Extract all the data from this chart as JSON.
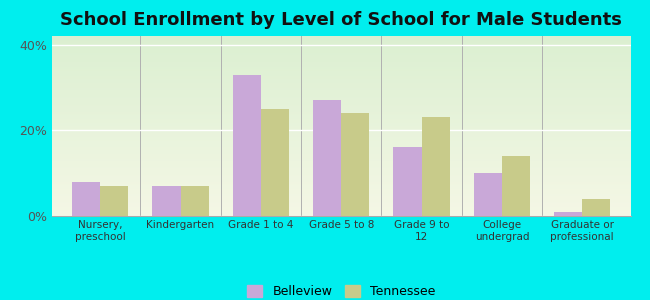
{
  "title": "School Enrollment by Level of School for Male Students",
  "categories": [
    "Nursery,\npreschool",
    "Kindergarten",
    "Grade 1 to 4",
    "Grade 5 to 8",
    "Grade 9 to\n12",
    "College\nundergrad",
    "Graduate or\nprofessional"
  ],
  "belleview": [
    8,
    7,
    33,
    27,
    16,
    10,
    1
  ],
  "tennessee": [
    7,
    7,
    25,
    24,
    23,
    14,
    4
  ],
  "belleview_color": "#c9a8d8",
  "tennessee_color": "#c8cb8a",
  "background_color": "#00eeee",
  "ylim": [
    0,
    42
  ],
  "yticks": [
    0,
    20,
    40
  ],
  "ytick_labels": [
    "0%",
    "20%",
    "40%"
  ],
  "title_fontsize": 13,
  "legend_labels": [
    "Belleview",
    "Tennessee"
  ],
  "bar_width": 0.35
}
